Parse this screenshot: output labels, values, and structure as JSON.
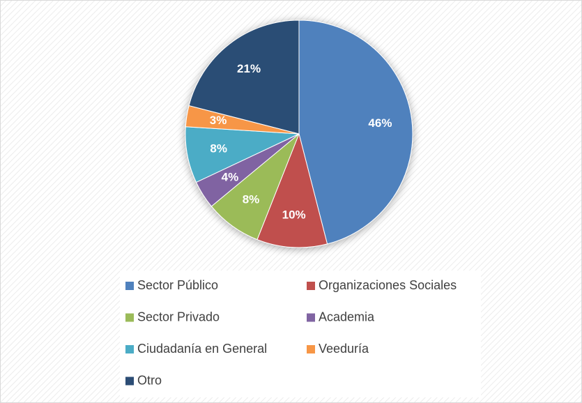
{
  "chart_data": {
    "type": "pie",
    "categories": [
      "Sector Público",
      "Organizaciones Sociales",
      "Sector Privado",
      "Academia",
      "Ciudadanía en General",
      "Veeduría",
      "Otro"
    ],
    "values": [
      46,
      10,
      8,
      4,
      8,
      3,
      21
    ],
    "value_labels": [
      "46%",
      "10%",
      "8%",
      "4%",
      "8%",
      "3%",
      "21%"
    ],
    "colors": [
      "#4f81bd",
      "#c0504d",
      "#9bbb59",
      "#8064a2",
      "#4bacc6",
      "#f79646",
      "#2c4d75"
    ],
    "legend": "bottom"
  }
}
